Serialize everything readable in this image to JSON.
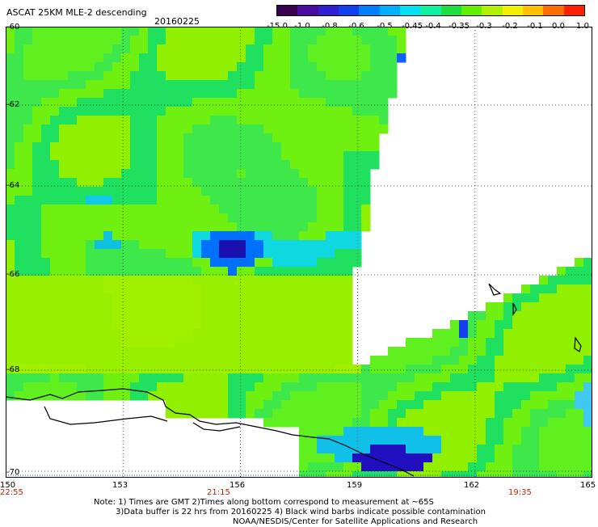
{
  "header": {
    "title": "ASCAT 25KM MLE-2 descending",
    "date": "20160225"
  },
  "colorbar": {
    "colors": [
      "#3a0050",
      "#4b0aa0",
      "#3020d0",
      "#1040f0",
      "#0080ff",
      "#00b0ff",
      "#00e0f0",
      "#10f0a0",
      "#20e040",
      "#60f000",
      "#b0f000",
      "#f0f000",
      "#ffc000",
      "#ff7000",
      "#ff2000"
    ],
    "labels": [
      "-15.0",
      "-1.0",
      "-0.8",
      "-0.6",
      "-0.5",
      "-0.45",
      "-0.4",
      "-0.35",
      "-0.3",
      "-0.2",
      "-0.1",
      "0.0",
      "1.0"
    ]
  },
  "map": {
    "lat_labels": [
      "-60",
      "-62",
      "-64",
      "-66",
      "-68",
      "-70"
    ],
    "lon_labels": [
      "150",
      "153",
      "156",
      "159",
      "162",
      "165"
    ],
    "time_labels": [
      "22:55",
      "21:15",
      "19:35"
    ],
    "lon_range": [
      150,
      165
    ],
    "lat_range": [
      -60,
      -70
    ]
  },
  "notes": {
    "line1": "Note: 1) Times are GMT 2)Times along bottom correspond to measurement at ~65S",
    "line2": "3)Data buffer is 22 hrs from 20160225 4) Black wind barbs indicate possible contamination",
    "line3": "NOAA/NESDIS/Center for Satellite Applications and Research"
  }
}
